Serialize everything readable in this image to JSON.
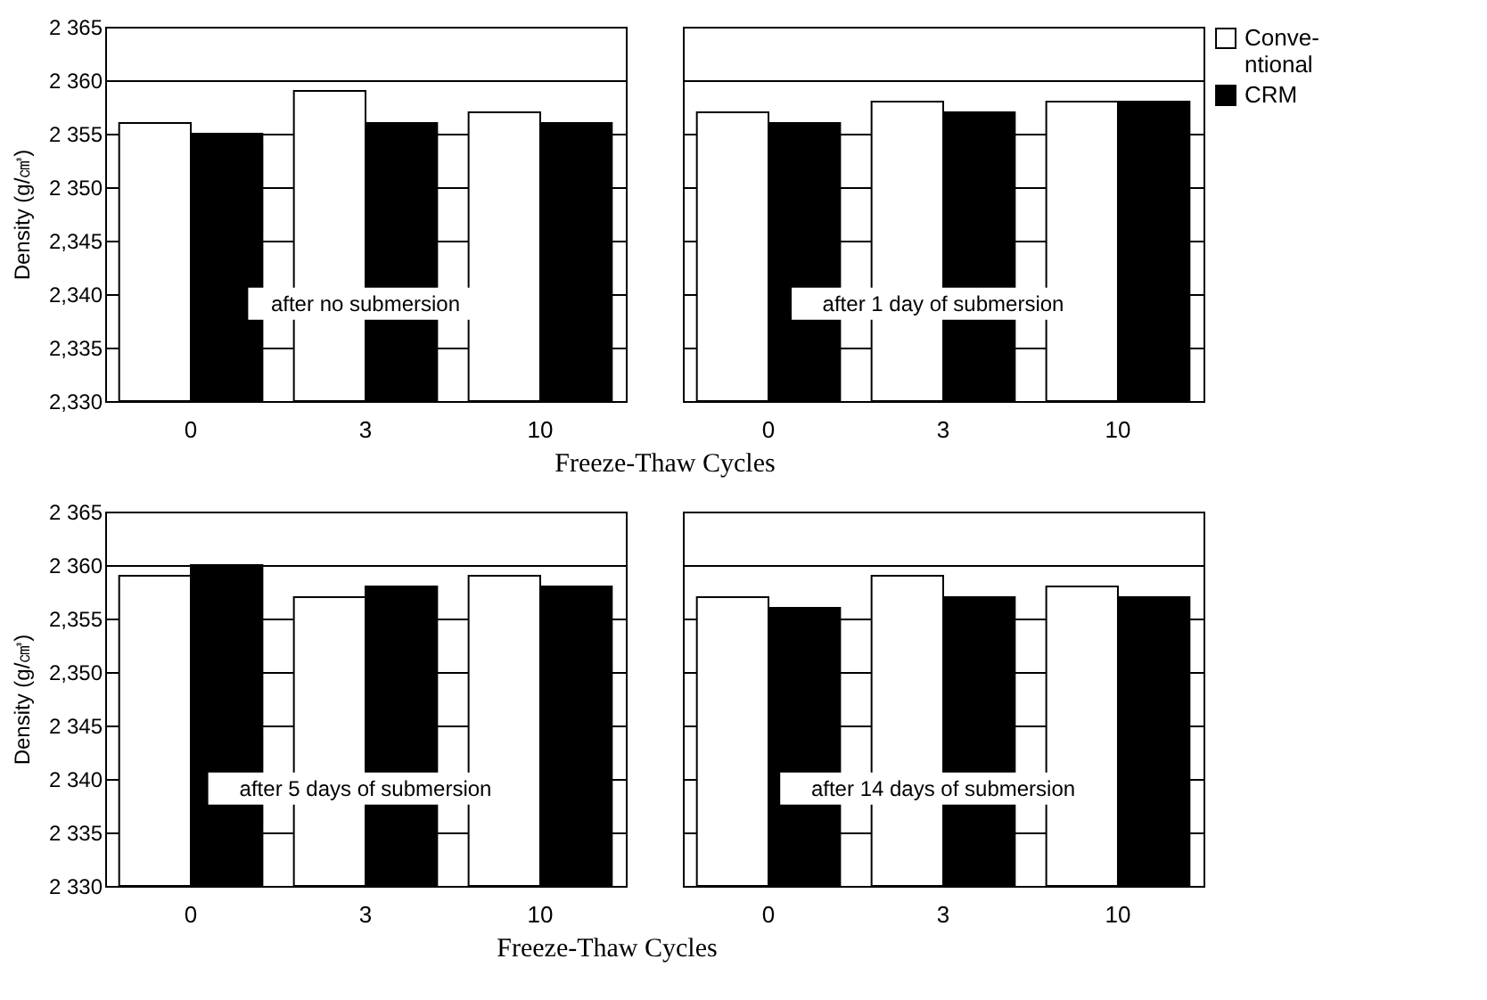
{
  "chart_data": [
    {
      "type": "bar",
      "ylabel": "Density (g/㎤)",
      "xlabel": "Freeze-Thaw Cycles",
      "categories": [
        "0",
        "3",
        "10"
      ],
      "series": [
        {
          "color": "#ffffff",
          "values": [
            2356,
            2359,
            2357
          ]
        },
        {
          "color": "#000000",
          "values": [
            2355,
            2356,
            2356
          ]
        }
      ],
      "ylim": [
        2330,
        2365
      ],
      "yticks": [
        {
          "value": 2330,
          "label": "2,330"
        },
        {
          "value": 2335,
          "label": "2,335"
        },
        {
          "value": 2340,
          "label": "2,340"
        },
        {
          "value": 2345,
          "label": "2,345"
        },
        {
          "value": 2350,
          "label": "2 350"
        },
        {
          "value": 2355,
          "label": "2 355"
        },
        {
          "value": 2360,
          "label": "2 360"
        },
        {
          "value": 2365,
          "label": "2 365"
        }
      ],
      "grid": "y",
      "annotations": [
        "after no submersion"
      ]
    },
    {
      "type": "bar",
      "categories": [
        "0",
        "3",
        "10"
      ],
      "series": [
        {
          "name": "Conve-\nntional",
          "color": "#ffffff",
          "values": [
            2357,
            2358,
            2358
          ]
        },
        {
          "name": "CRM",
          "color": "#000000",
          "values": [
            2356,
            2357,
            2358
          ]
        }
      ],
      "ylim": [
        2330,
        2365
      ],
      "yticks": [
        {
          "value": 2330,
          "label": null
        },
        {
          "value": 2335,
          "label": null
        },
        {
          "value": 2340,
          "label": null
        },
        {
          "value": 2345,
          "label": null
        },
        {
          "value": 2350,
          "label": null
        },
        {
          "value": 2355,
          "label": null
        },
        {
          "value": 2360,
          "label": null
        },
        {
          "value": 2365,
          "label": null
        }
      ],
      "tick_labels": "x",
      "grid": "y",
      "legend": "right",
      "annotations": [
        "after 1 day of submersion"
      ]
    },
    {
      "type": "bar",
      "ylabel": "Density (g/㎤)",
      "xlabel": "Freeze-Thaw Cycles",
      "categories": [
        "0",
        "3",
        "10"
      ],
      "series": [
        {
          "color": "#ffffff",
          "values": [
            2359,
            2357,
            2359
          ]
        },
        {
          "color": "#000000",
          "values": [
            2360,
            2358,
            2358
          ]
        }
      ],
      "ylim": [
        2330,
        2365
      ],
      "yticks": [
        {
          "value": 2330,
          "label": "2 330"
        },
        {
          "value": 2335,
          "label": "2 335"
        },
        {
          "value": 2340,
          "label": "2 340"
        },
        {
          "value": 2345,
          "label": "2 345"
        },
        {
          "value": 2350,
          "label": "2,350"
        },
        {
          "value": 2355,
          "label": "2,355"
        },
        {
          "value": 2360,
          "label": "2 360"
        },
        {
          "value": 2365,
          "label": "2 365"
        }
      ],
      "grid": "y",
      "annotations": [
        "after 5 days of submersion"
      ]
    },
    {
      "type": "bar",
      "categories": [
        "0",
        "3",
        "10"
      ],
      "series": [
        {
          "color": "#ffffff",
          "values": [
            2357,
            2359,
            2358
          ]
        },
        {
          "color": "#000000",
          "values": [
            2356,
            2357,
            2357
          ]
        }
      ],
      "ylim": [
        2330,
        2365
      ],
      "yticks": [
        {
          "value": 2330,
          "label": null
        },
        {
          "value": 2335,
          "label": null
        },
        {
          "value": 2340,
          "label": null
        },
        {
          "value": 2345,
          "label": null
        },
        {
          "value": 2350,
          "label": null
        },
        {
          "value": 2355,
          "label": null
        },
        {
          "value": 2360,
          "label": null
        },
        {
          "value": 2365,
          "label": null
        }
      ],
      "tick_labels": "x",
      "grid": "y",
      "annotations": [
        "after 14 days of submersion"
      ]
    }
  ]
}
